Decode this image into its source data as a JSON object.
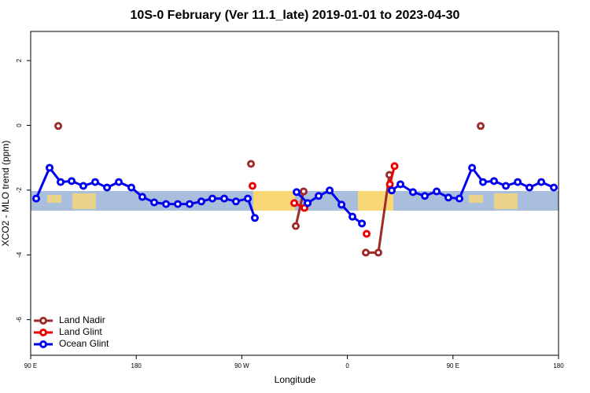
{
  "chart_data": {
    "type": "line",
    "title": "10S-0 February (Ver 11.1_late)   2019-01-01 to 2023-04-30",
    "x_label": "Longitude",
    "y_label": "XCO2 - MLO trend (ppm)",
    "xlim": [
      90,
      540
    ],
    "ylim": [
      -7.1,
      2.9
    ],
    "xticks": [
      {
        "value": 90,
        "label": "90 E"
      },
      180,
      {
        "value": 270,
        "label": "90 W"
      },
      {
        "value": 360,
        "label": "0"
      },
      {
        "value": 450,
        "label": "90 E"
      },
      {
        "value": 540,
        "label": "180"
      }
    ],
    "yticks": [
      -6,
      -4,
      -2,
      0,
      2
    ],
    "legend": "bottom-left",
    "series": [
      {
        "name": "Land Nadir",
        "color": "#9e2a2a",
        "x": [
          113.5,
          null,
          277.8,
          null,
          316,
          322.7,
          null,
          375.7,
          386.4,
          395.8,
          null,
          473.6
        ],
        "values": [
          -0.02,
          null,
          -1.19,
          null,
          -3.11,
          -2.04,
          null,
          -3.93,
          -3.93,
          -1.53,
          null,
          -0.02
        ]
      },
      {
        "name": "Land Glint",
        "color": "#ee0000",
        "x": [
          279.1,
          null,
          314.7,
          323.4,
          null,
          376.4,
          null,
          396.2,
          400.2
        ],
        "values": [
          -1.87,
          null,
          -2.4,
          -2.55,
          null,
          -3.35,
          null,
          -1.82,
          -1.26
        ]
      },
      {
        "name": "Ocean Glint",
        "color": "#0000ee",
        "x": [
          94.7,
          106.1,
          115.5,
          124.9,
          134.9,
          145,
          155.1,
          165.1,
          175.8,
          185.2,
          195.3,
          205.4,
          215.4,
          225.5,
          235.5,
          244.9,
          255,
          265,
          275.1,
          281.1,
          null,
          316.7,
          326.1,
          335.5,
          344.9,
          355,
          364.3,
          372.4,
          null,
          397.8,
          405.2,
          415.9,
          426,
          436.1,
          446.1,
          455.5,
          466.3,
          475.6,
          485,
          495.1,
          505.2,
          515.2,
          525.3,
          536
        ],
        "values": [
          -2.26,
          -1.31,
          -1.75,
          -1.72,
          -1.87,
          -1.75,
          -1.92,
          -1.75,
          -1.92,
          -2.21,
          -2.38,
          -2.43,
          -2.43,
          -2.43,
          -2.35,
          -2.26,
          -2.26,
          -2.35,
          -2.26,
          -2.86,
          null,
          -2.06,
          -2.4,
          -2.18,
          -2.01,
          -2.45,
          -2.82,
          -3.03,
          null,
          -2.01,
          -1.82,
          -2.06,
          -2.18,
          -2.04,
          -2.23,
          -2.26,
          -1.31,
          -1.75,
          -1.72,
          -1.87,
          -1.75,
          -1.92,
          -1.75,
          -1.92
        ]
      }
    ]
  }
}
